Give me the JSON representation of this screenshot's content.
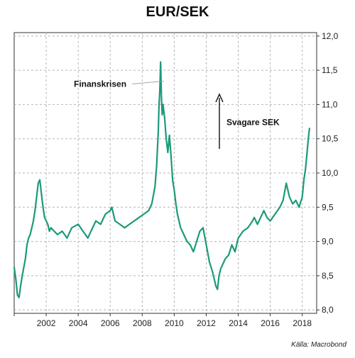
{
  "chart_data": {
    "type": "line",
    "title": "EUR/SEK",
    "source": "Källa: Macrobond",
    "xlabel": "",
    "ylabel": "",
    "xlim": [
      2000.0,
      2018.9
    ],
    "ylim": [
      7.95,
      12.05
    ],
    "x_ticks": [
      2002,
      2004,
      2006,
      2008,
      2010,
      2012,
      2014,
      2016,
      2018
    ],
    "x_tick_labels": [
      "2002",
      "2004",
      "2006",
      "2008",
      "2010",
      "2012",
      "2014",
      "2016",
      "2018"
    ],
    "y_ticks": [
      8.0,
      8.5,
      9.0,
      9.5,
      10.0,
      10.5,
      11.0,
      11.5,
      12.0
    ],
    "y_tick_labels": [
      "8,0",
      "8,5",
      "9,0",
      "9,5",
      "10,0",
      "10,5",
      "11,0",
      "11,5",
      "12,0"
    ],
    "grid": true,
    "line_color": "#1b9a7a",
    "series": [
      {
        "x": [
          2000.0,
          2000.1,
          2000.2,
          2000.3,
          2000.4,
          2000.5,
          2000.6,
          2000.7,
          2000.8,
          2000.9,
          2001.0,
          2001.1,
          2001.2,
          2001.3,
          2001.4,
          2001.5,
          2001.6,
          2001.7,
          2001.75,
          2001.8,
          2001.9,
          2002.0,
          2002.1,
          2002.2,
          2002.3,
          2002.5,
          2002.7,
          2003.0,
          2003.3,
          2003.6,
          2004.0,
          2004.3,
          2004.6,
          2004.9,
          2005.1,
          2005.4,
          2005.7,
          2006.0,
          2006.1,
          2006.3,
          2006.6,
          2006.9,
          2007.2,
          2007.5,
          2007.8,
          2008.1,
          2008.4,
          2008.6,
          2008.8,
          2008.9,
          2009.0,
          2009.05,
          2009.1,
          2009.15,
          2009.2,
          2009.25,
          2009.3,
          2009.4,
          2009.5,
          2009.6,
          2009.7,
          2009.8,
          2009.9,
          2010.0,
          2010.1,
          2010.2,
          2010.4,
          2010.6,
          2010.8,
          2011.0,
          2011.2,
          2011.4,
          2011.6,
          2011.8,
          2012.0,
          2012.2,
          2012.4,
          2012.6,
          2012.7,
          2012.8,
          2012.9,
          2013.0,
          2013.2,
          2013.4,
          2013.6,
          2013.8,
          2014.0,
          2014.3,
          2014.6,
          2014.9,
          2015.0,
          2015.2,
          2015.4,
          2015.6,
          2015.8,
          2016.0,
          2016.3,
          2016.6,
          2016.8,
          2017.0,
          2017.2,
          2017.4,
          2017.6,
          2017.8,
          2018.0,
          2018.1,
          2018.2,
          2018.3,
          2018.4,
          2018.45
        ],
        "values": [
          8.62,
          8.45,
          8.22,
          8.18,
          8.35,
          8.5,
          8.62,
          8.75,
          8.95,
          9.05,
          9.1,
          9.2,
          9.3,
          9.45,
          9.65,
          9.85,
          9.9,
          9.7,
          9.6,
          9.5,
          9.35,
          9.3,
          9.25,
          9.15,
          9.2,
          9.15,
          9.1,
          9.15,
          9.05,
          9.2,
          9.25,
          9.15,
          9.05,
          9.2,
          9.3,
          9.25,
          9.4,
          9.45,
          9.5,
          9.3,
          9.25,
          9.2,
          9.25,
          9.3,
          9.35,
          9.4,
          9.45,
          9.55,
          9.8,
          10.1,
          10.6,
          11.0,
          11.2,
          11.62,
          11.1,
          10.85,
          11.0,
          10.8,
          10.5,
          10.3,
          10.55,
          10.25,
          9.9,
          9.75,
          9.55,
          9.4,
          9.2,
          9.1,
          9.0,
          8.95,
          8.85,
          9.0,
          9.15,
          9.2,
          8.95,
          8.7,
          8.55,
          8.35,
          8.3,
          8.5,
          8.6,
          8.65,
          8.75,
          8.8,
          8.95,
          8.85,
          9.05,
          9.15,
          9.2,
          9.3,
          9.35,
          9.25,
          9.35,
          9.45,
          9.35,
          9.3,
          9.4,
          9.5,
          9.6,
          9.85,
          9.65,
          9.55,
          9.6,
          9.5,
          9.65,
          9.9,
          10.05,
          10.3,
          10.55,
          10.65
        ]
      }
    ],
    "annotations": [
      {
        "label": "Finanskrisen",
        "x": 2009.0,
        "y": 11.3
      },
      {
        "label": "Svagare SEK",
        "x": 2012.6,
        "y": 10.7
      }
    ]
  }
}
